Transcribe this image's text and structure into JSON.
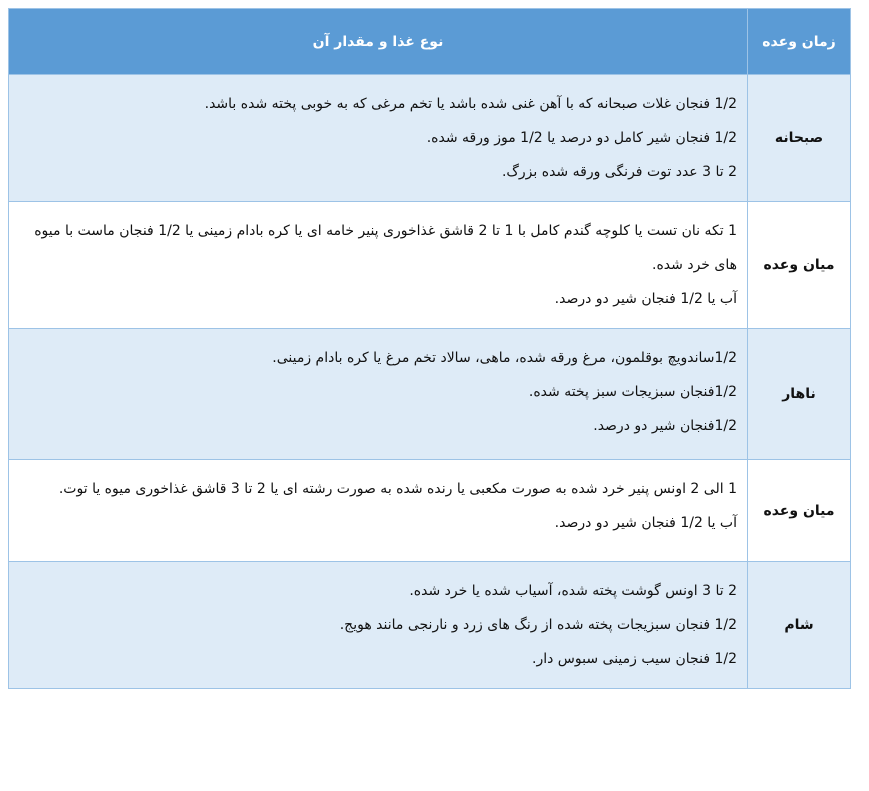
{
  "header": {
    "meal_time": "زمان وعده",
    "food_type": "نوع غذا و مقدار آن"
  },
  "colors": {
    "header_bg": "#5b9bd5",
    "shaded_row": "#deebf7",
    "border": "#9dc3e6"
  },
  "rows": [
    {
      "meal": "صبحانه",
      "items": [
        "1/2 فنجان غلات صبحانه که با آهن غنی شده باشد یا تخم مرغی که به خوبی پخته شده باشد.",
        "1/2 فنجان شیر کامل دو درصد یا 1/2 موز ورقه شده.",
        "2 تا 3 عدد توت فرنگی ورقه شده بزرگ."
      ]
    },
    {
      "meal": "میان وعده",
      "items": [
        "1 تکه نان تست یا کلوچه گندم کامل با 1 تا 2 قاشق غذاخوری پنیر خامه ای یا کره بادام زمینی یا 1/2 فنجان ماست با میوه های خرد شده.",
        "آب یا 1/2 فنجان شیر دو درصد."
      ]
    },
    {
      "meal": "ناهار",
      "items": [
        "1/2ساندویچ بوقلمون، مرغ ورقه شده، ماهی، سالاد تخم مرغ یا کره بادام زمینی.",
        "1/2فنجان سبزیجات سبز پخته شده.",
        "1/2فنجان شیر دو درصد."
      ]
    },
    {
      "meal": "میان وعده",
      "items": [
        "1 الی 2 اونس پنیر خرد شده به صورت مکعبی یا رنده شده به صورت رشته ای یا 2 تا 3 قاشق غذاخوری میوه یا توت.",
        "آب یا 1/2 فنجان شیر دو درصد."
      ]
    },
    {
      "meal": "شام",
      "items": [
        "2 تا 3 اونس گوشت پخته شده، آسیاب شده یا خرد شده.",
        "1/2 فنجان سبزیجات پخته شده از رنگ های زرد و نارنجی مانند هویج.",
        "1/2 فنجان سیب زمینی سبوس دار."
      ]
    }
  ]
}
